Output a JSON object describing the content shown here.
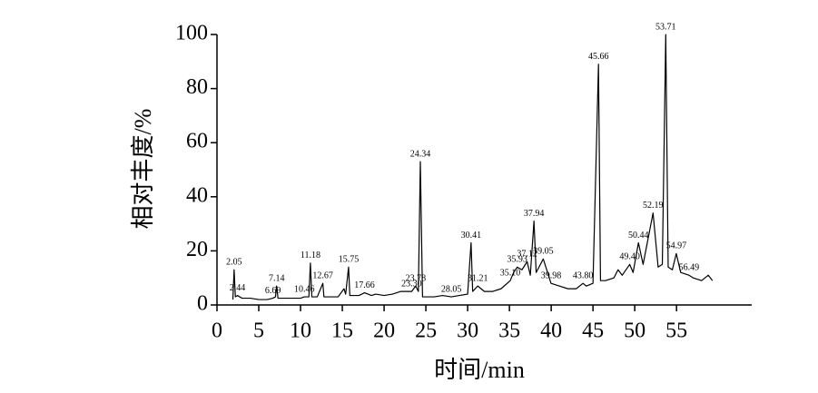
{
  "chart_data": {
    "type": "line",
    "x_label": "时间/min",
    "y_label": "相对丰度/%",
    "xlim": [
      0,
      64
    ],
    "ylim": [
      0,
      100
    ],
    "xticks": [
      0,
      5,
      10,
      15,
      20,
      25,
      30,
      35,
      40,
      45,
      50,
      55
    ],
    "yticks": [
      0,
      20,
      40,
      60,
      80,
      100
    ],
    "color": "#000000",
    "x": [
      1.9,
      2.05,
      2.2,
      2.44,
      3,
      4,
      5,
      6,
      6.69,
      7,
      7.14,
      7.3,
      8,
      9,
      10,
      10.46,
      11,
      11.18,
      11.35,
      12,
      12.67,
      12.8,
      13.5,
      14.5,
      15.2,
      15.4,
      15.75,
      15.9,
      17,
      17.66,
      18.5,
      19,
      20,
      21,
      22,
      23.3,
      23.78,
      24.1,
      24.34,
      24.6,
      25,
      26,
      27,
      28.05,
      29,
      30,
      30.41,
      30.6,
      31.21,
      32,
      33,
      34,
      35.1,
      35.5,
      35.93,
      36.5,
      37.12,
      37.5,
      37.94,
      38.2,
      39.05,
      39.98,
      41,
      42,
      43,
      43.8,
      44.2,
      45,
      45.66,
      45.9,
      46.5,
      47.5,
      48,
      48.5,
      49.4,
      49.8,
      50.44,
      51,
      52.19,
      52.8,
      53.3,
      53.71,
      54,
      54.5,
      54.97,
      55.5,
      56.49,
      57,
      58,
      58.8,
      59.3
    ],
    "values": [
      2,
      13,
      3,
      3.5,
      2.5,
      2.5,
      2,
      2,
      2.5,
      3,
      7,
      2.5,
      2.5,
      2.5,
      2.5,
      3,
      3,
      15.5,
      3,
      3,
      8,
      3,
      3,
      3,
      6,
      4,
      14,
      3.5,
      3.5,
      4.5,
      3.5,
      4,
      3.5,
      4,
      5,
      5,
      7,
      5,
      53,
      3,
      3,
      3,
      3.5,
      3,
      3.5,
      4,
      23,
      5,
      7,
      5,
      5,
      6,
      9,
      12,
      14,
      13,
      16,
      11,
      31,
      12,
      17,
      8,
      7,
      6,
      6,
      8,
      7,
      8,
      89,
      9,
      9,
      10,
      13,
      11,
      15,
      12,
      23,
      15,
      34,
      14,
      15,
      100,
      14,
      13,
      19,
      12,
      11,
      10,
      9,
      11,
      9
    ],
    "annotations": [
      {
        "text": "2.05",
        "x": 2.05,
        "y": 13
      },
      {
        "text": "2.44",
        "x": 2.44,
        "y": 3.5
      },
      {
        "text": "6.69",
        "x": 6.69,
        "y": 2.5
      },
      {
        "text": "7.14",
        "x": 7.14,
        "y": 7
      },
      {
        "text": "10.46",
        "x": 10.46,
        "y": 3
      },
      {
        "text": "11.18",
        "x": 11.18,
        "y": 15.5
      },
      {
        "text": "12.67",
        "x": 12.67,
        "y": 8
      },
      {
        "text": "15.75",
        "x": 15.75,
        "y": 14
      },
      {
        "text": "17.66",
        "x": 17.66,
        "y": 4.5
      },
      {
        "text": "23.30",
        "x": 23.3,
        "y": 5
      },
      {
        "text": "23.78",
        "x": 23.78,
        "y": 7
      },
      {
        "text": "24.34",
        "x": 24.34,
        "y": 53
      },
      {
        "text": "28.05",
        "x": 28.05,
        "y": 3
      },
      {
        "text": "30.41",
        "x": 30.41,
        "y": 23
      },
      {
        "text": "31.21",
        "x": 31.21,
        "y": 7
      },
      {
        "text": "35.10",
        "x": 35.1,
        "y": 9
      },
      {
        "text": "35.93",
        "x": 35.93,
        "y": 14
      },
      {
        "text": "37.12",
        "x": 37.12,
        "y": 16
      },
      {
        "text": "37.94",
        "x": 37.94,
        "y": 31
      },
      {
        "text": "39.05",
        "x": 39.05,
        "y": 17
      },
      {
        "text": "39.98",
        "x": 39.98,
        "y": 8
      },
      {
        "text": "43.80",
        "x": 43.8,
        "y": 8
      },
      {
        "text": "45.66",
        "x": 45.66,
        "y": 89
      },
      {
        "text": "49.40",
        "x": 49.4,
        "y": 15
      },
      {
        "text": "50.44",
        "x": 50.44,
        "y": 23
      },
      {
        "text": "52.19",
        "x": 52.19,
        "y": 34
      },
      {
        "text": "53.71",
        "x": 53.71,
        "y": 100
      },
      {
        "text": "54.97",
        "x": 54.97,
        "y": 19
      },
      {
        "text": "56.49",
        "x": 56.49,
        "y": 11
      }
    ]
  }
}
